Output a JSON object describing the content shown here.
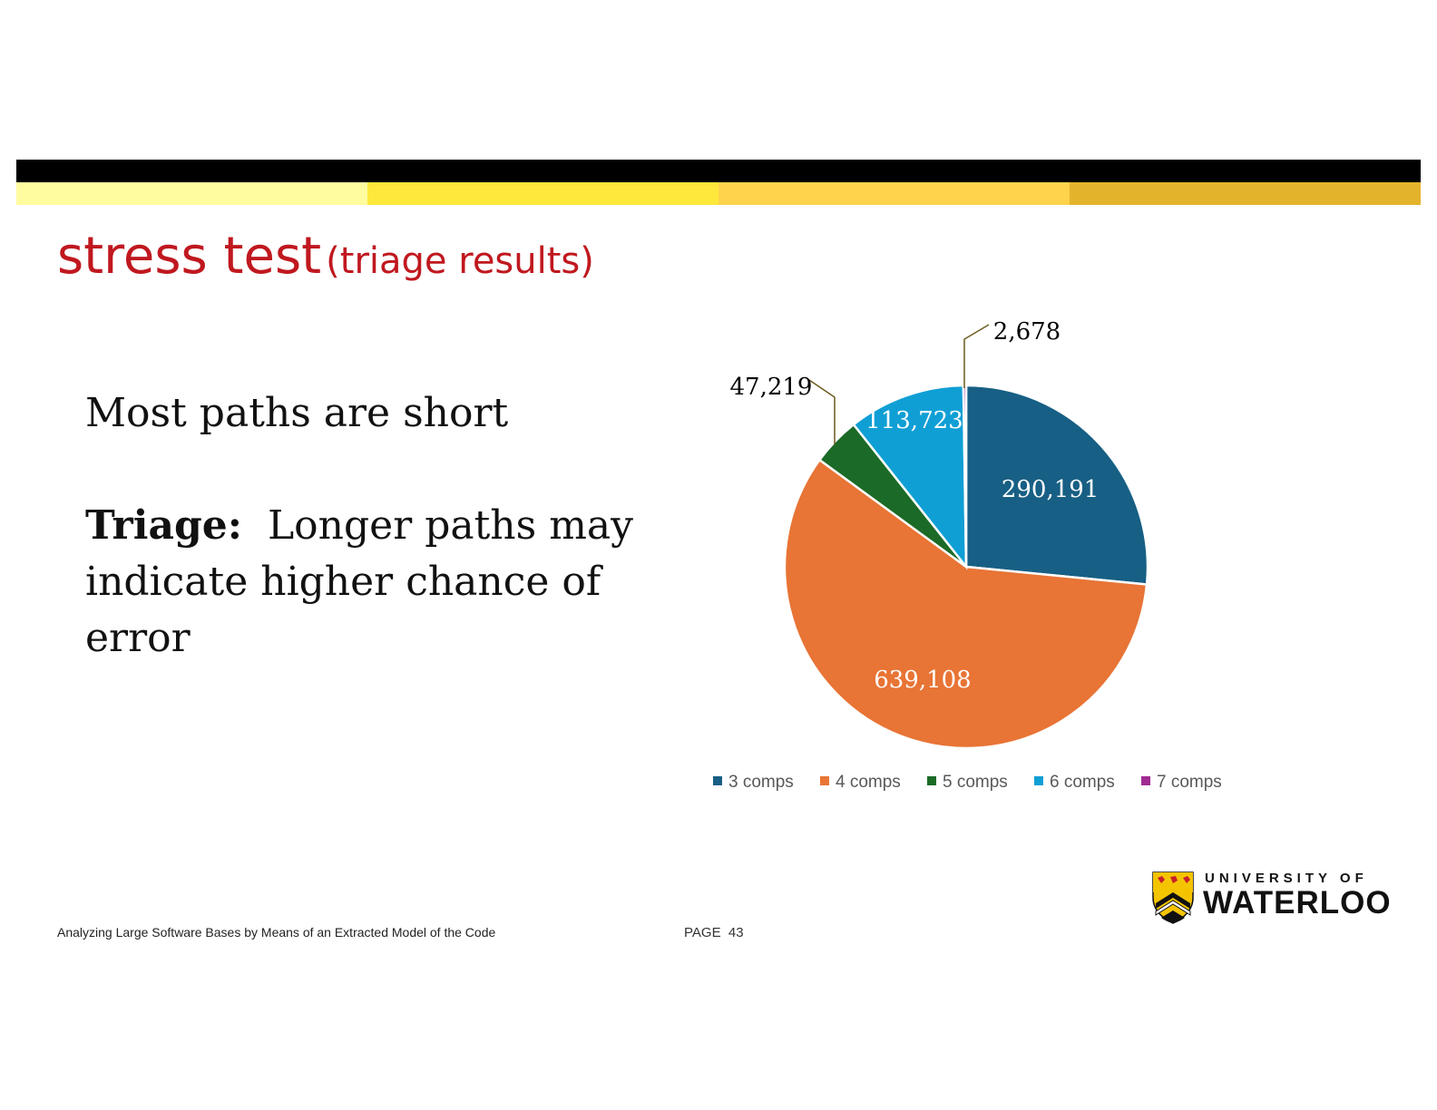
{
  "slide": {
    "title_main": "stress test",
    "title_sub": "(triage results)",
    "point1": "Most paths are short",
    "point2_bold": "Triage:",
    "point2_rest": "Longer paths may indicate higher chance of error",
    "footer_text": "Analyzing Large Software Bases by Means of an Extracted Model of the Code",
    "page_label": "PAGE",
    "page_number": "43"
  },
  "logo": {
    "line1": "UNIVERSITY OF",
    "line2": "WATERLOO"
  },
  "stripe_colors": [
    "#fffca0",
    "#ffe83c",
    "#ffd34c",
    "#e4b32c"
  ],
  "chart_data": {
    "type": "pie",
    "categories": [
      "3 comps",
      "4 comps",
      "5 comps",
      "6 comps",
      "7 comps"
    ],
    "values": [
      290191,
      639108,
      47219,
      113723,
      2678
    ],
    "labels": [
      "290,191",
      "639,108",
      "47,219",
      "113,723",
      "2,678"
    ],
    "colors": [
      "#175f84",
      "#e87435",
      "#1b6a27",
      "#109fd5",
      "#a02b93"
    ],
    "legend_position": "bottom"
  }
}
